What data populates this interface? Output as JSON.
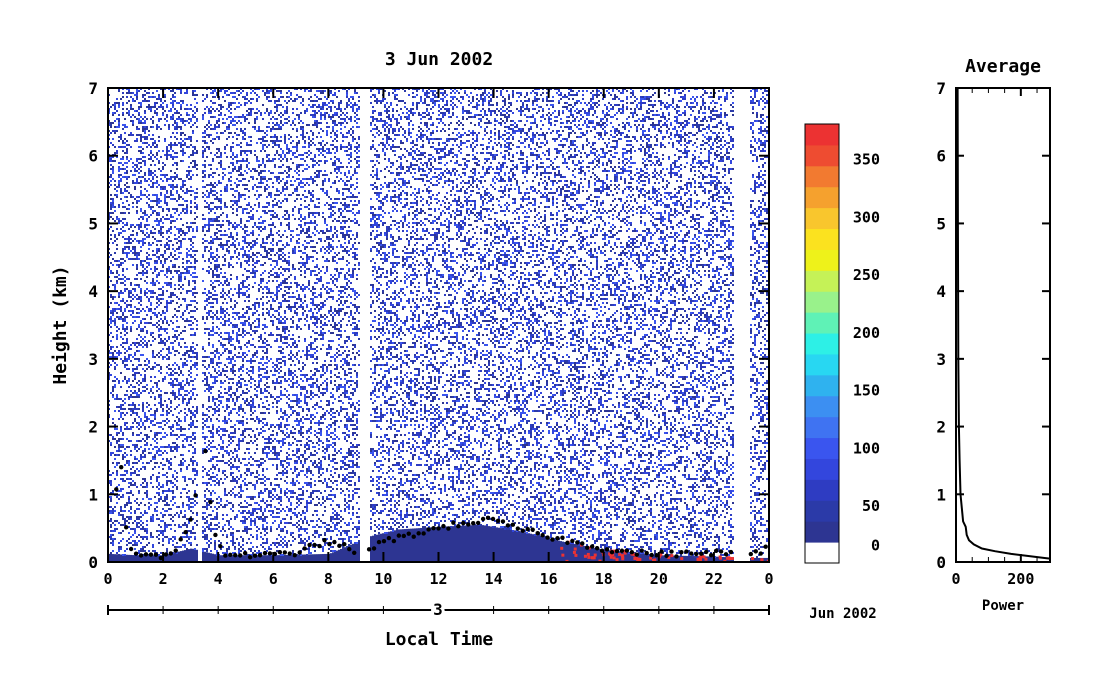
{
  "chart_data": [
    {
      "type": "heatmap",
      "title": "3 Jun 2002",
      "xlabel": "Local Time",
      "ylabel": "Height (km)",
      "xlim": [
        0,
        24
      ],
      "ylim": [
        0,
        7
      ],
      "x_ticks": [
        "0",
        "2",
        "4",
        "6",
        "8",
        "10",
        "12",
        "14",
        "16",
        "18",
        "20",
        "22",
        "0"
      ],
      "y_ticks": [
        "0",
        "1",
        "2",
        "3",
        "4",
        "5",
        "6",
        "7"
      ],
      "date_axis": {
        "day_label": "3",
        "month_label": "Jun 2002"
      },
      "colorbar": {
        "ticks": [
          "0",
          "50",
          "100",
          "150",
          "200",
          "250",
          "300",
          "350"
        ],
        "range": [
          0,
          380
        ],
        "colors": [
          "#ffffff",
          "#2d3592",
          "#2b3aa8",
          "#2e3cc2",
          "#3346dd",
          "#3a55ef",
          "#3f73f2",
          "#3c8ff2",
          "#2fb2ef",
          "#28d7f2",
          "#2df0e6",
          "#5ff2b6",
          "#99f28b",
          "#c5f257",
          "#eef21a",
          "#fbe21f",
          "#f9c62d",
          "#f5a12e",
          "#f27a30",
          "#ee4c31",
          "#ec3232"
        ]
      },
      "gaps_hours": [
        [
          3.2,
          3.4
        ],
        [
          9.1,
          9.45
        ],
        [
          22.7,
          23.3
        ]
      ],
      "boundary_layer_height_km": [
        [
          0.0,
          0.1
        ],
        [
          0.4,
          1.35
        ],
        [
          0.55,
          1.5
        ],
        [
          0.7,
          0.2
        ],
        [
          1.0,
          0.1
        ],
        [
          1.5,
          0.08
        ],
        [
          2.0,
          0.1
        ],
        [
          2.5,
          0.2
        ],
        [
          2.8,
          0.45
        ],
        [
          3.0,
          0.65
        ],
        [
          3.2,
          1.0
        ],
        [
          3.5,
          1.8
        ],
        [
          3.8,
          0.5
        ],
        [
          4.2,
          0.12
        ],
        [
          5.0,
          0.1
        ],
        [
          6.0,
          0.1
        ],
        [
          7.0,
          0.15
        ],
        [
          7.5,
          0.25
        ],
        [
          8.0,
          0.3
        ],
        [
          8.5,
          0.25
        ],
        [
          9.0,
          0.1
        ],
        [
          10.0,
          0.3
        ],
        [
          11.0,
          0.4
        ],
        [
          12.0,
          0.5
        ],
        [
          13.0,
          0.58
        ],
        [
          13.8,
          0.62
        ],
        [
          14.5,
          0.55
        ],
        [
          15.0,
          0.48
        ],
        [
          16.0,
          0.38
        ],
        [
          17.0,
          0.28
        ],
        [
          18.0,
          0.2
        ],
        [
          19.0,
          0.14
        ],
        [
          20.0,
          0.12
        ],
        [
          21.0,
          0.12
        ],
        [
          22.0,
          0.14
        ],
        [
          22.5,
          0.12
        ],
        [
          23.5,
          0.12
        ],
        [
          23.9,
          0.2
        ]
      ],
      "dense_layer_top_km": [
        [
          0.0,
          0.12
        ],
        [
          1.0,
          0.1
        ],
        [
          2.0,
          0.1
        ],
        [
          3.0,
          0.2
        ],
        [
          4.0,
          0.1
        ],
        [
          6.0,
          0.1
        ],
        [
          8.0,
          0.12
        ],
        [
          9.5,
          0.38
        ],
        [
          10.5,
          0.48
        ],
        [
          12.0,
          0.52
        ],
        [
          13.5,
          0.55
        ],
        [
          15.0,
          0.45
        ],
        [
          16.5,
          0.3
        ],
        [
          18.0,
          0.18
        ],
        [
          20.0,
          0.1
        ],
        [
          22.0,
          0.08
        ],
        [
          23.0,
          0.06
        ],
        [
          24.0,
          0.06
        ]
      ]
    },
    {
      "type": "line",
      "title": "Average",
      "xlabel": "Power",
      "ylabel": "",
      "xlim": [
        0,
        290
      ],
      "ylim": [
        0,
        7
      ],
      "x_ticks": [
        "0",
        "200"
      ],
      "y_ticks": [
        "0",
        "1",
        "2",
        "3",
        "4",
        "5",
        "6",
        "7"
      ],
      "points": [
        [
          5,
          7.0
        ],
        [
          6,
          5.0
        ],
        [
          7,
          3.0
        ],
        [
          9,
          2.0
        ],
        [
          11,
          1.5
        ],
        [
          14,
          1.0
        ],
        [
          18,
          0.8
        ],
        [
          22,
          0.6
        ],
        [
          30,
          0.52
        ],
        [
          33,
          0.4
        ],
        [
          40,
          0.32
        ],
        [
          55,
          0.26
        ],
        [
          80,
          0.2
        ],
        [
          120,
          0.16
        ],
        [
          170,
          0.12
        ],
        [
          220,
          0.09
        ],
        [
          270,
          0.06
        ],
        [
          290,
          0.05
        ]
      ]
    }
  ]
}
